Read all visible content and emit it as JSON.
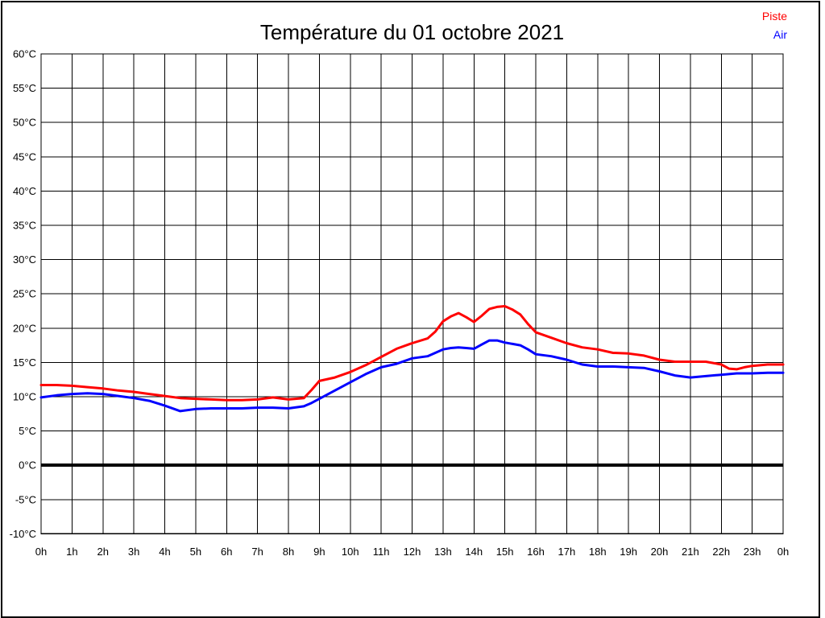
{
  "chart_data": {
    "type": "line",
    "title": "Température du 01 octobre 2021",
    "xlabel": "",
    "ylabel": "",
    "xlim": [
      0,
      24
    ],
    "ylim": [
      -10,
      60
    ],
    "grid": true,
    "legend_position": "top-right",
    "zero_line": {
      "value": 0,
      "color": "#000000",
      "width": 4
    },
    "x_tick_positions": [
      0,
      1,
      2,
      3,
      4,
      5,
      6,
      7,
      8,
      9,
      10,
      11,
      12,
      13,
      14,
      15,
      16,
      17,
      18,
      19,
      20,
      21,
      22,
      23,
      24
    ],
    "x_tick_labels": [
      "0h",
      "1h",
      "2h",
      "3h",
      "4h",
      "5h",
      "6h",
      "7h",
      "8h",
      "9h",
      "10h",
      "11h",
      "12h",
      "13h",
      "14h",
      "15h",
      "16h",
      "17h",
      "18h",
      "19h",
      "20h",
      "21h",
      "22h",
      "23h",
      "0h"
    ],
    "y_tick_values": [
      60,
      55,
      50,
      45,
      40,
      35,
      30,
      25,
      20,
      15,
      10,
      5,
      0,
      -5,
      -10
    ],
    "y_tick_labels": [
      "60°C",
      "55°C",
      "50°C",
      "45°C",
      "40°C",
      "35°C",
      "30°C",
      "25°C",
      "20°C",
      "15°C",
      "10°C",
      "5°C",
      "0°C",
      "-5°C",
      "-10°C"
    ],
    "x": [
      0,
      0.5,
      1,
      1.5,
      2,
      2.5,
      3,
      3.5,
      4,
      4.5,
      5,
      5.5,
      6,
      6.5,
      7,
      7.5,
      8,
      8.5,
      8.75,
      9,
      9.5,
      10,
      10.5,
      11,
      11.5,
      12,
      12.5,
      12.75,
      13,
      13.25,
      13.5,
      13.75,
      14,
      14.25,
      14.5,
      14.75,
      15,
      15.25,
      15.5,
      15.75,
      16,
      16.5,
      17,
      17.5,
      18,
      18.5,
      19,
      19.5,
      20,
      20.5,
      21,
      21.5,
      22,
      22.25,
      22.5,
      22.75,
      23,
      23.5,
      24
    ],
    "series": [
      {
        "name": "Piste",
        "color": "#ff0000",
        "values": [
          11.7,
          11.7,
          11.6,
          11.4,
          11.2,
          10.9,
          10.7,
          10.4,
          10.1,
          9.8,
          9.7,
          9.6,
          9.5,
          9.5,
          9.6,
          9.9,
          9.6,
          9.8,
          11.0,
          12.3,
          12.8,
          13.6,
          14.6,
          15.8,
          17.0,
          17.8,
          18.5,
          19.5,
          21.0,
          21.7,
          22.2,
          21.6,
          20.9,
          21.8,
          22.8,
          23.1,
          23.2,
          22.7,
          22.0,
          20.6,
          19.4,
          18.6,
          17.8,
          17.2,
          16.9,
          16.4,
          16.3,
          16.0,
          15.4,
          15.1,
          15.1,
          15.1,
          14.7,
          14.1,
          14.0,
          14.3,
          14.5,
          14.7,
          14.7
        ]
      },
      {
        "name": "Air",
        "color": "#0000ff",
        "values": [
          9.9,
          10.2,
          10.4,
          10.5,
          10.4,
          10.1,
          9.8,
          9.4,
          8.7,
          7.9,
          8.2,
          8.3,
          8.3,
          8.3,
          8.4,
          8.4,
          8.3,
          8.6,
          9.1,
          9.7,
          10.9,
          12.1,
          13.3,
          14.3,
          14.8,
          15.6,
          15.9,
          16.4,
          16.9,
          17.1,
          17.2,
          17.1,
          17.0,
          17.6,
          18.2,
          18.2,
          17.9,
          17.7,
          17.5,
          16.9,
          16.2,
          15.9,
          15.4,
          14.7,
          14.4,
          14.4,
          14.3,
          14.2,
          13.7,
          13.1,
          12.8,
          13.0,
          13.2,
          13.3,
          13.4,
          13.4,
          13.4,
          13.5,
          13.5
        ]
      }
    ]
  }
}
